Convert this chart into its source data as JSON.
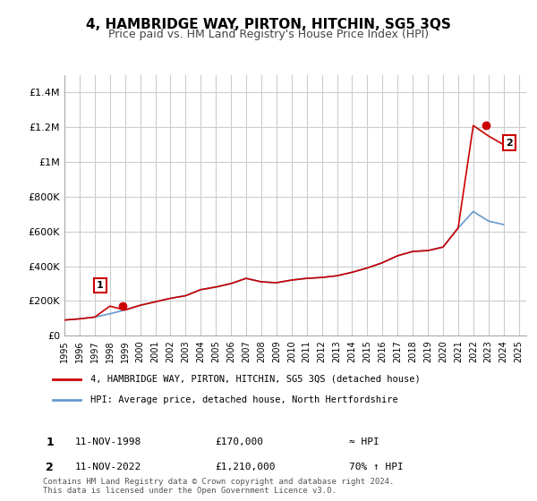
{
  "title": "4, HAMBRIDGE WAY, PIRTON, HITCHIN, SG5 3QS",
  "subtitle": "Price paid vs. HM Land Registry's House Price Index (HPI)",
  "footer": "Contains HM Land Registry data © Crown copyright and database right 2024.\nThis data is licensed under the Open Government Licence v3.0.",
  "legend_line1": "4, HAMBRIDGE WAY, PIRTON, HITCHIN, SG5 3QS (detached house)",
  "legend_line2": "HPI: Average price, detached house, North Hertfordshire",
  "annotation1_label": "1",
  "annotation1_date": "11-NOV-1998",
  "annotation1_price": "£170,000",
  "annotation1_hpi": "≈ HPI",
  "annotation2_label": "2",
  "annotation2_date": "11-NOV-2022",
  "annotation2_price": "£1,210,000",
  "annotation2_hpi": "70% ↑ HPI",
  "hpi_color": "#6699cc",
  "price_color": "#cc0000",
  "grid_color": "#cccccc",
  "background_color": "#ffffff",
  "ylim": [
    0,
    1500000
  ],
  "yticks": [
    0,
    200000,
    400000,
    600000,
    800000,
    1000000,
    1200000,
    1400000
  ],
  "ytick_labels": [
    "£0",
    "£200K",
    "£400K",
    "£600K",
    "£800K",
    "£1M",
    "£1.2M",
    "£1.4M"
  ],
  "sale1_x": 1998.86,
  "sale1_y": 170000,
  "sale2_x": 2022.86,
  "sale2_y": 1210000,
  "hpi_years": [
    1995,
    1996,
    1997,
    1998,
    1999,
    2000,
    2001,
    2002,
    2003,
    2004,
    2005,
    2006,
    2007,
    2008,
    2009,
    2010,
    2011,
    2012,
    2013,
    2014,
    2015,
    2016,
    2017,
    2018,
    2019,
    2020,
    2021,
    2022,
    2023,
    2024
  ],
  "hpi_values": [
    90000,
    97000,
    107000,
    126000,
    148000,
    175000,
    195000,
    215000,
    230000,
    265000,
    280000,
    300000,
    330000,
    310000,
    305000,
    320000,
    330000,
    335000,
    345000,
    365000,
    390000,
    420000,
    460000,
    485000,
    490000,
    510000,
    620000,
    715000,
    660000,
    640000
  ],
  "price_years": [
    1995,
    1996,
    1997,
    1998,
    1999,
    2000,
    2001,
    2002,
    2003,
    2004,
    2005,
    2006,
    2007,
    2008,
    2009,
    2010,
    2011,
    2012,
    2013,
    2014,
    2015,
    2016,
    2017,
    2018,
    2019,
    2020,
    2021,
    2022,
    2023,
    2024
  ],
  "price_values": [
    90000,
    97000,
    107000,
    170000,
    148000,
    175000,
    195000,
    215000,
    230000,
    265000,
    280000,
    300000,
    330000,
    310000,
    305000,
    320000,
    330000,
    335000,
    345000,
    365000,
    390000,
    420000,
    460000,
    485000,
    490000,
    510000,
    620000,
    1210000,
    1150000,
    1100000
  ],
  "xlim_min": 1995,
  "xlim_max": 2025.5,
  "xticks": [
    1995,
    1996,
    1997,
    1998,
    1999,
    2000,
    2001,
    2002,
    2003,
    2004,
    2005,
    2006,
    2007,
    2008,
    2009,
    2010,
    2011,
    2012,
    2013,
    2014,
    2015,
    2016,
    2017,
    2018,
    2019,
    2020,
    2021,
    2022,
    2023,
    2024,
    2025
  ]
}
